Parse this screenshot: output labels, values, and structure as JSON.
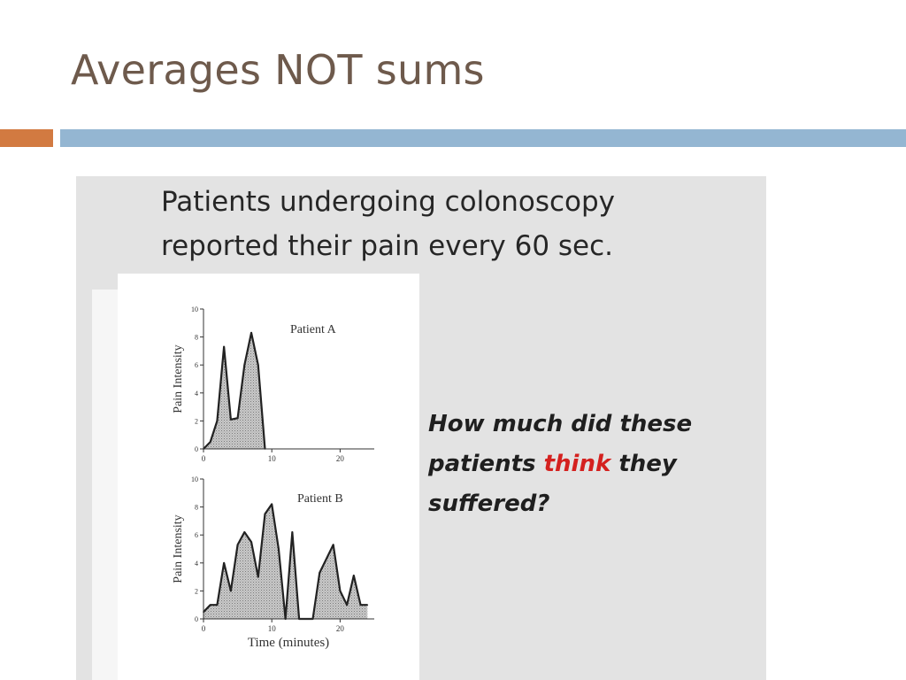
{
  "slide": {
    "title": "Averages NOT sums",
    "colors": {
      "title": "#6e5a4c",
      "accent_orange": "#d27a41",
      "accent_blue": "#94b6d2",
      "emphasis": "#d4211f"
    }
  },
  "panel": {
    "heading_line1": "Patients undergoing colonoscopy",
    "heading_line2": "reported their pain every 60 sec.",
    "question_line1": "How much did these",
    "question_line2_before": "patients ",
    "question_line2_emphasis": "think",
    "question_line2_after": " they",
    "question_line3": "suffered?"
  },
  "chart_data": [
    {
      "type": "area",
      "title": "Patient A",
      "ylabel": "Pain Intensity",
      "xlabel": "",
      "xlim": [
        0,
        25
      ],
      "ylim": [
        0,
        10
      ],
      "xticks": [
        0,
        10,
        20
      ],
      "yticks": [
        0,
        2,
        4,
        6,
        8,
        10
      ],
      "x": [
        0,
        1,
        2,
        3,
        4,
        5,
        6,
        7,
        8,
        9
      ],
      "values": [
        0,
        0.5,
        2,
        7.3,
        2.1,
        2.2,
        6,
        8.3,
        6,
        0
      ]
    },
    {
      "type": "area",
      "title": "Patient B",
      "ylabel": "Pain Intensity",
      "xlabel": "Time (minutes)",
      "xlim": [
        0,
        25
      ],
      "ylim": [
        0,
        10
      ],
      "xticks": [
        0,
        10,
        20
      ],
      "yticks": [
        0,
        2,
        4,
        6,
        8,
        10
      ],
      "x": [
        0,
        1,
        2,
        3,
        4,
        5,
        6,
        7,
        8,
        9,
        10,
        11,
        12,
        13,
        14,
        15,
        16,
        17,
        18,
        19,
        20,
        21,
        22,
        23,
        24
      ],
      "values": [
        0.5,
        1,
        1,
        4,
        2,
        5.3,
        6.2,
        5.5,
        3,
        7.5,
        8.2,
        5,
        0,
        6.2,
        0,
        0,
        0,
        3.3,
        4.3,
        5.3,
        2,
        1,
        3.1,
        1,
        1
      ]
    }
  ]
}
